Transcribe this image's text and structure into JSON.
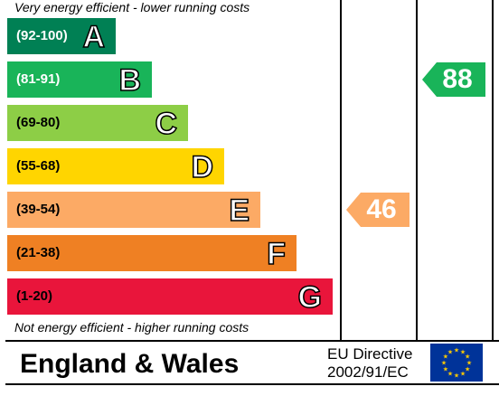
{
  "chart_data": {
    "type": "bar",
    "top_caption": "Very energy efficient - lower running costs",
    "bottom_caption": "Not energy efficient - higher running costs",
    "bands": [
      {
        "range": "(92-100)",
        "letter": "A",
        "color": "#008054",
        "text_color": "#ffffff"
      },
      {
        "range": "(81-91)",
        "letter": "B",
        "color": "#19b459",
        "text_color": "#ffffff"
      },
      {
        "range": "(69-80)",
        "letter": "C",
        "color": "#8dce46",
        "text_color": "#000000"
      },
      {
        "range": "(55-68)",
        "letter": "D",
        "color": "#ffd500",
        "text_color": "#000000"
      },
      {
        "range": "(39-54)",
        "letter": "E",
        "color": "#fcaa65",
        "text_color": "#000000"
      },
      {
        "range": "(21-38)",
        "letter": "F",
        "color": "#ef8023",
        "text_color": "#000000"
      },
      {
        "range": "(1-20)",
        "letter": "G",
        "color": "#e9153b",
        "text_color": "#000000"
      }
    ],
    "ratings": [
      {
        "value": "46",
        "band": "E",
        "color": "#fcaa65",
        "column": "current"
      },
      {
        "value": "88",
        "band": "B",
        "color": "#19b459",
        "column": "potential"
      }
    ]
  },
  "footer": {
    "region": "England & Wales",
    "directive_line1": "EU Directive",
    "directive_line2": "2002/91/EC",
    "flag_icon": "eu-flag-icon"
  }
}
